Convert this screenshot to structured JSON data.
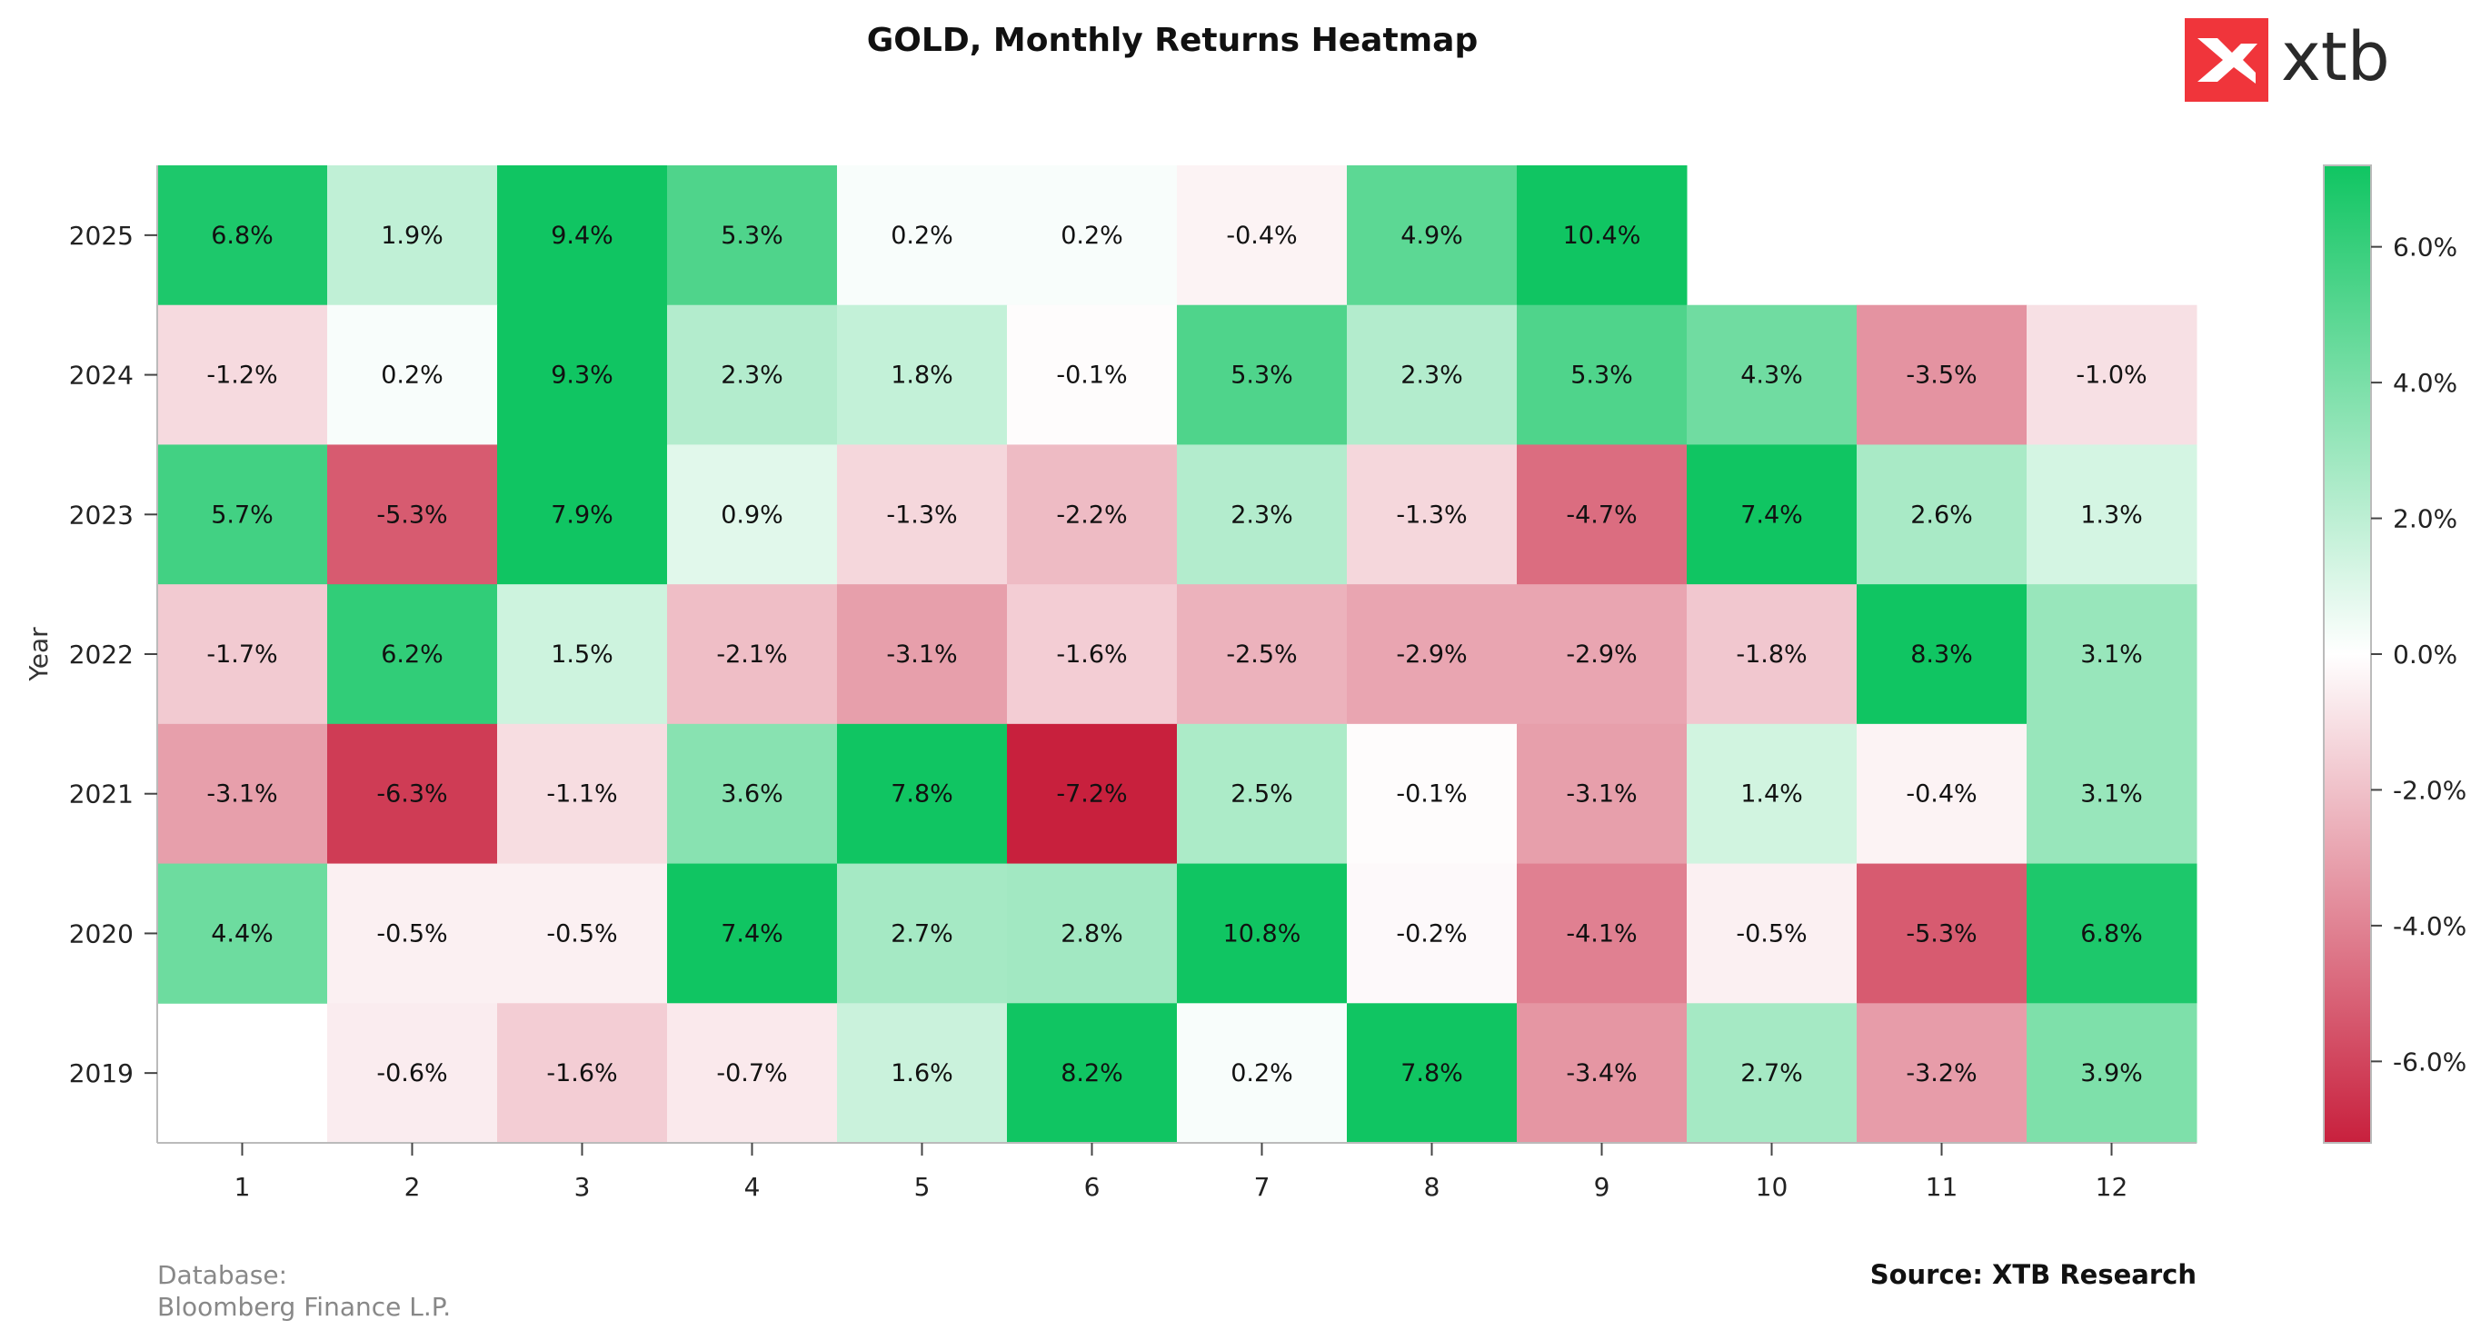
{
  "chart_data": {
    "type": "heatmap",
    "title": "GOLD, Monthly Returns Heatmap",
    "xlabel": "",
    "ylabel": "Year",
    "x": [
      "1",
      "2",
      "3",
      "4",
      "5",
      "6",
      "7",
      "8",
      "9",
      "10",
      "11",
      "12"
    ],
    "y": [
      "2025",
      "2024",
      "2023",
      "2022",
      "2021",
      "2020",
      "2019"
    ],
    "values": [
      [
        6.8,
        1.9,
        9.4,
        5.3,
        0.2,
        0.2,
        -0.4,
        4.9,
        10.4,
        null,
        null,
        null
      ],
      [
        -1.2,
        0.2,
        9.3,
        2.3,
        1.8,
        -0.1,
        5.3,
        2.3,
        5.3,
        4.3,
        -3.5,
        -1.0
      ],
      [
        5.7,
        -5.3,
        7.9,
        0.9,
        -1.3,
        -2.2,
        2.3,
        -1.3,
        -4.7,
        7.4,
        2.6,
        1.3
      ],
      [
        -1.7,
        6.2,
        1.5,
        -2.1,
        -3.1,
        -1.6,
        -2.5,
        -2.9,
        -2.9,
        -1.8,
        8.3,
        3.1
      ],
      [
        -3.1,
        -6.3,
        -1.1,
        3.6,
        7.8,
        -7.2,
        2.5,
        -0.1,
        -3.1,
        1.4,
        -0.4,
        3.1
      ],
      [
        4.4,
        -0.5,
        -0.5,
        7.4,
        2.7,
        2.8,
        10.8,
        -0.2,
        -4.1,
        -0.5,
        -5.3,
        6.8
      ],
      [
        null,
        -0.6,
        -1.6,
        -0.7,
        1.6,
        8.2,
        0.2,
        7.8,
        -3.4,
        2.7,
        -3.2,
        3.9
      ]
    ],
    "value_suffix": "%",
    "color_range": [
      -7.2,
      7.2
    ],
    "colorscale": {
      "negative": "#c8203d",
      "zero": "#ffffff",
      "positive": "#10c562"
    },
    "colorbar_ticks": [
      "6.0%",
      "4.0%",
      "2.0%",
      "0.0%",
      "-2.0%",
      "-4.0%",
      "-6.0%"
    ],
    "colorbar_tick_values": [
      6,
      4,
      2,
      0,
      -2,
      -4,
      -6
    ],
    "grid": false,
    "colorbar_position": "right"
  },
  "footer": {
    "database_label": "Database:",
    "database_value": "Bloomberg Finance L.P.",
    "source": "Source: XTB Research"
  },
  "logo": {
    "text": "xtb",
    "color": "#f0353b"
  }
}
